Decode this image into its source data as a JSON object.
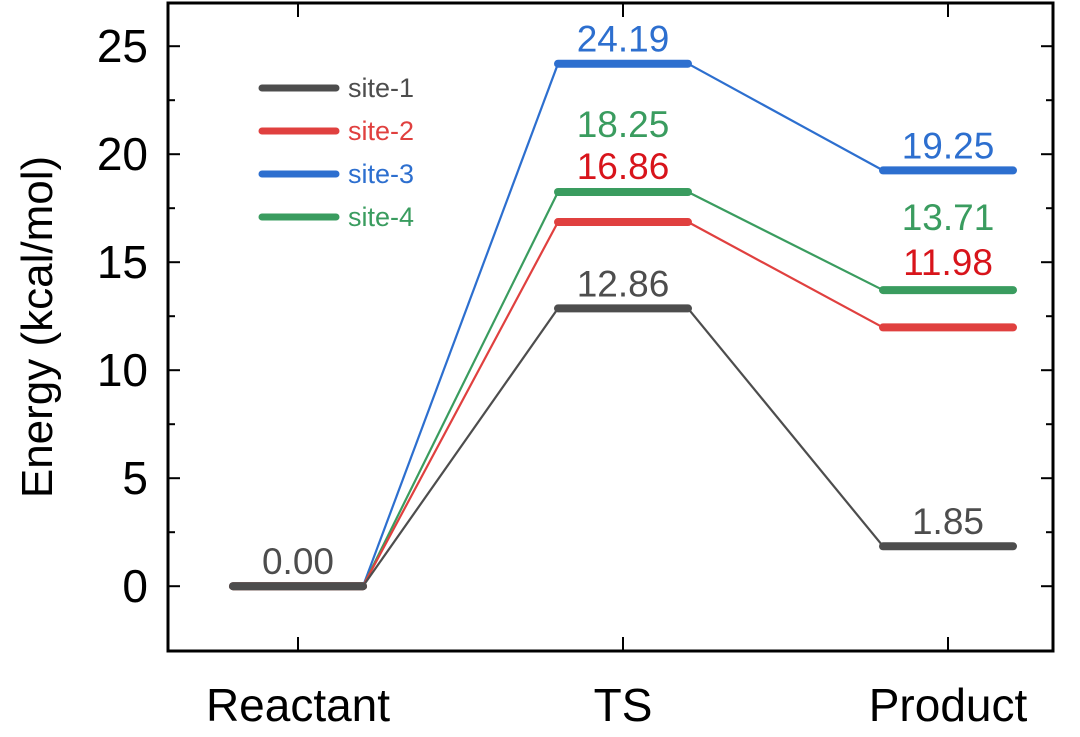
{
  "chart_data": {
    "type": "line",
    "title": "",
    "xlabel": "",
    "ylabel": "Energy (kcal/mol)",
    "categories": [
      "Reactant",
      "TS",
      "Product"
    ],
    "ylim": [
      -3,
      27
    ],
    "yticks": [
      "0",
      "5",
      "10",
      "15",
      "20",
      "25"
    ],
    "legend_position": "top-left",
    "series": [
      {
        "name": "site-1",
        "color": "#4d4d4d",
        "values": [
          0.0,
          12.86,
          1.85
        ],
        "labels": [
          "0.00",
          "12.86",
          "1.85"
        ]
      },
      {
        "name": "site-2",
        "color": "#e0403f",
        "values": [
          0.0,
          16.86,
          11.98
        ],
        "labels": [
          "",
          "16.86",
          "11.98"
        ]
      },
      {
        "name": "site-3",
        "color": "#2d6fcf",
        "values": [
          0.0,
          24.19,
          19.25
        ],
        "labels": [
          "",
          "24.19",
          "19.25"
        ]
      },
      {
        "name": "site-4",
        "color": "#3a9c5f",
        "values": [
          0.0,
          18.25,
          13.71
        ],
        "labels": [
          "",
          "18.25",
          "13.71"
        ]
      }
    ],
    "label_colors": {
      "site-2": "#d8141b"
    }
  }
}
